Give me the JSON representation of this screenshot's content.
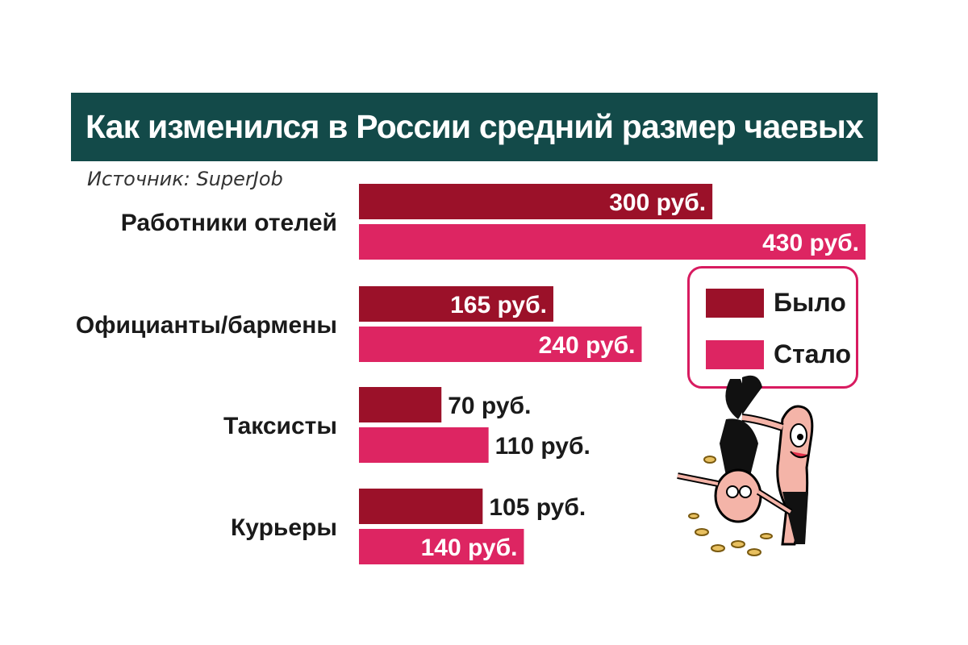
{
  "title": "Как изменился в России средний размер чаевых",
  "source": "Источник: SuperJob",
  "colors": {
    "before": "#9b1129",
    "after": "#dd2562",
    "title_bg": "#134a49",
    "legend_border": "#d81b60"
  },
  "legend": {
    "before_label": "Было",
    "after_label": "Стало"
  },
  "chart_data": {
    "type": "bar",
    "orientation": "horizontal",
    "categories": [
      "Работники отелей",
      "Официанты/бармены",
      "Таксисты",
      "Курьеры"
    ],
    "series": [
      {
        "name": "Было",
        "values": [
          300,
          165,
          70,
          105
        ],
        "labels": [
          "300 руб.",
          "165 руб.",
          "70 руб.",
          "105 руб."
        ]
      },
      {
        "name": "Стало",
        "values": [
          430,
          240,
          110,
          140
        ],
        "labels": [
          "430 руб.",
          "240 руб.",
          "110 руб.",
          "140 руб."
        ]
      }
    ],
    "unit": "руб.",
    "xlim": [
      0,
      430
    ],
    "grid": false,
    "legend_position": "right"
  },
  "illustration": {
    "icon": "cartoon-man-shaking-coins-icon"
  }
}
